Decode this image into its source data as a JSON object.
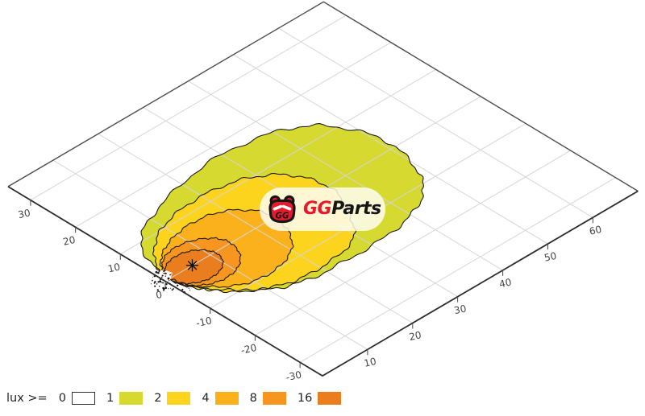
{
  "page": {
    "background": "#ffffff"
  },
  "watermark": {
    "brand_gg": "GG",
    "brand_parts": "Parts",
    "icon_text": "GG",
    "red": "#e8192c",
    "dark": "#161616",
    "pill_color": "rgba(255,255,250,0.82)"
  },
  "legend": {
    "prefix": "lux >=",
    "items": [
      {
        "value": "0",
        "color": "#ffffff",
        "bordered": true
      },
      {
        "value": "1",
        "color": "#d5d930",
        "bordered": false
      },
      {
        "value": "2",
        "color": "#fcd41d",
        "bordered": false
      },
      {
        "value": "4",
        "color": "#fab11b",
        "bordered": false
      },
      {
        "value": "8",
        "color": "#f6951f",
        "bordered": false
      },
      {
        "value": "16",
        "color": "#ea7e1f",
        "bordered": false
      }
    ]
  },
  "chart_data": {
    "type": "contour",
    "title": "",
    "description": "Isolux headlight beam pattern projected on a skewed road-plane grid",
    "units": "lux",
    "axes": {
      "lateral": {
        "ticks": [
          30,
          20,
          10,
          0,
          -10,
          -20,
          -30
        ],
        "range": [
          35,
          -35
        ]
      },
      "distance": {
        "ticks": [
          10,
          20,
          30,
          40,
          50,
          60
        ],
        "range": [
          0,
          70
        ]
      }
    },
    "grid": true,
    "grid_color": "#d6d6d6",
    "border_color": "#4c4c4c",
    "axis_color": "#2b2b2b",
    "tick_label_color": "#444444",
    "contour_stroke": "#1b1b1b",
    "hotspot_marker": {
      "distance": 6,
      "lateral": 0,
      "symbol": "asterisk"
    },
    "contours": [
      {
        "level": 1,
        "color": "#d5d930",
        "points": [
          [
            1,
            2
          ],
          [
            4.5,
            10
          ],
          [
            13,
            14.5
          ],
          [
            27,
            17.5
          ],
          [
            40,
            16
          ],
          [
            47.5,
            11
          ],
          [
            51,
            2
          ],
          [
            49,
            -7
          ],
          [
            44.5,
            -12.5
          ],
          [
            36,
            -15.5
          ],
          [
            25,
            -16
          ],
          [
            15.5,
            -15.2
          ],
          [
            9,
            -12
          ],
          [
            4,
            -7
          ],
          [
            1.5,
            -2.5
          ]
        ]
      },
      {
        "level": 2,
        "color": "#fcd41d",
        "points": [
          [
            1,
            1.5
          ],
          [
            4,
            6.5
          ],
          [
            10,
            10.5
          ],
          [
            19,
            12
          ],
          [
            28,
            10.5
          ],
          [
            34,
            6
          ],
          [
            36,
            -1
          ],
          [
            33,
            -8
          ],
          [
            28.5,
            -13
          ],
          [
            20,
            -14.5
          ],
          [
            12.5,
            -13.5
          ],
          [
            6,
            -9.5
          ],
          [
            2,
            -4
          ]
        ]
      },
      {
        "level": 4,
        "color": "#fab11b",
        "points": [
          [
            1,
            1
          ],
          [
            3.5,
            4.5
          ],
          [
            8,
            7
          ],
          [
            14,
            8
          ],
          [
            20,
            6.5
          ],
          [
            24,
            2
          ],
          [
            23.5,
            -3.5
          ],
          [
            20,
            -8
          ],
          [
            14,
            -10
          ],
          [
            8,
            -9
          ],
          [
            3.5,
            -5.5
          ],
          [
            1.2,
            -2.5
          ]
        ]
      },
      {
        "level": 8,
        "color": "#f6951f",
        "points": [
          [
            0.8,
            0.7
          ],
          [
            2.5,
            3.2
          ],
          [
            5.5,
            5
          ],
          [
            9.5,
            5
          ],
          [
            13,
            3.2
          ],
          [
            14.5,
            0.5
          ],
          [
            13.5,
            -3
          ],
          [
            10.5,
            -5.5
          ],
          [
            6.5,
            -6
          ],
          [
            3,
            -4.5
          ],
          [
            1,
            -2
          ]
        ]
      },
      {
        "level": 16,
        "color": "#ea7e1f",
        "points": [
          [
            0.7,
            0.4
          ],
          [
            2,
            2.2
          ],
          [
            4.5,
            3.4
          ],
          [
            7.5,
            3.3
          ],
          [
            10,
            1.8
          ],
          [
            11,
            -0.5
          ],
          [
            10,
            -2.8
          ],
          [
            7.5,
            -4.2
          ],
          [
            4.5,
            -4.2
          ],
          [
            2,
            -2.8
          ],
          [
            0.8,
            -1
          ]
        ]
      }
    ],
    "origin_noise": {
      "present": true,
      "dot_count": 42,
      "patch": [
        [
          186,
          341
        ],
        [
          203,
          335
        ],
        [
          214,
          339
        ],
        [
          211,
          348
        ],
        [
          222,
          356
        ],
        [
          215,
          364
        ],
        [
          197,
          363
        ],
        [
          185,
          352
        ]
      ]
    }
  }
}
